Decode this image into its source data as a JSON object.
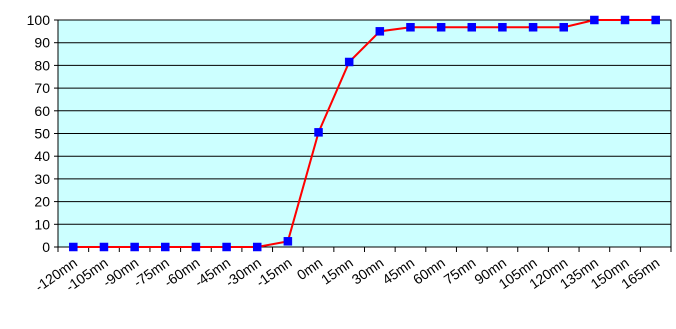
{
  "chart_data": {
    "type": "line",
    "title": "",
    "xlabel": "",
    "ylabel": "",
    "categories": [
      "-120mn",
      "-105mn",
      "-90mn",
      "-75mn",
      "-60mn",
      "-45mn",
      "-30mn",
      "-15mn",
      "0mn",
      "15mn",
      "30mn",
      "45mn",
      "60mn",
      "75mn",
      "90mn",
      "105mn",
      "120mn",
      "135mn",
      "150mn",
      "165mn"
    ],
    "series": [
      {
        "values": [
          0,
          0,
          0,
          0,
          0,
          0,
          0,
          2.5,
          50.5,
          81.5,
          95,
          96.8,
          96.8,
          96.8,
          96.8,
          96.8,
          96.8,
          100,
          100,
          100
        ],
        "line_color": "#ff0000",
        "marker_color": "#0000ff"
      }
    ],
    "ylim": [
      0,
      100
    ],
    "ytick_step": 10,
    "grid": true,
    "legend": "none",
    "plot_background": "#ccffff"
  }
}
